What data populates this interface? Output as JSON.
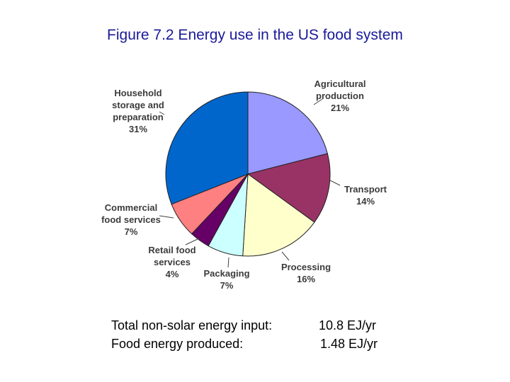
{
  "page": {
    "title": "Figure 7.2 Energy use in the US food system",
    "title_color": "#1a1a9a"
  },
  "summary": {
    "rows": [
      {
        "label": "Total non-solar energy input:",
        "value": "10.8 EJ/yr"
      },
      {
        "label": "Food energy produced:",
        "value": "1.48 EJ/yr"
      }
    ]
  },
  "chart_data": {
    "type": "pie",
    "title": "",
    "unit": "%",
    "start_angle_deg": 0,
    "direction": "clockwise",
    "slices": [
      {
        "label_lines": [
          "Agricultural",
          "production",
          "21%"
        ],
        "name": "Agricultural production",
        "value": 21,
        "color": "#9999ff"
      },
      {
        "label_lines": [
          "Transport",
          "14%"
        ],
        "name": "Transport",
        "value": 14,
        "color": "#993366"
      },
      {
        "label_lines": [
          "Processing",
          "16%"
        ],
        "name": "Processing",
        "value": 16,
        "color": "#ffffcc"
      },
      {
        "label_lines": [
          "Packaging",
          "7%"
        ],
        "name": "Packaging",
        "value": 7,
        "color": "#ccffff"
      },
      {
        "label_lines": [
          "Retail food",
          "services",
          "4%"
        ],
        "name": "Retail food services",
        "value": 4,
        "color": "#660066"
      },
      {
        "label_lines": [
          "Commercial",
          "food services",
          "7%"
        ],
        "name": "Commercial food services",
        "value": 7,
        "color": "#ff8080"
      },
      {
        "label_lines": [
          "Household",
          "storage and",
          "preparation",
          "31%"
        ],
        "name": "Household storage and preparation",
        "value": 31,
        "color": "#0066cc"
      }
    ]
  }
}
